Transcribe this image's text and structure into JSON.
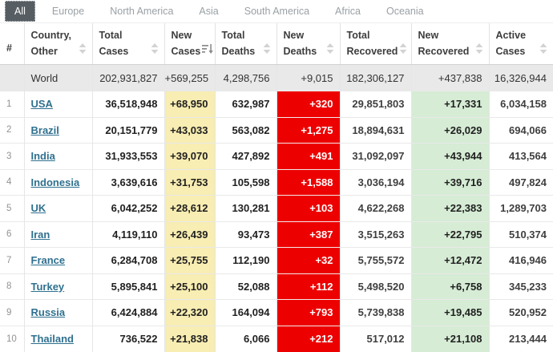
{
  "tabs": [
    {
      "label": "All",
      "active": true
    },
    {
      "label": "Europe",
      "active": false
    },
    {
      "label": "North America",
      "active": false
    },
    {
      "label": "Asia",
      "active": false
    },
    {
      "label": "South America",
      "active": false
    },
    {
      "label": "Africa",
      "active": false
    },
    {
      "label": "Oceania",
      "active": false
    }
  ],
  "table": {
    "columns": [
      {
        "key": "rank",
        "label_lines": [
          "",
          "#"
        ],
        "sortable": false
      },
      {
        "key": "country",
        "label_lines": [
          "Country,",
          "Other"
        ],
        "sortable": true,
        "sort_icon": "sort-toggle"
      },
      {
        "key": "total_cases",
        "label_lines": [
          "Total",
          "Cases"
        ],
        "sortable": true,
        "sort_icon": "sort-toggle"
      },
      {
        "key": "new_cases",
        "label_lines": [
          "New",
          "Cases"
        ],
        "sortable": true,
        "sort_icon": "sort-desc-active",
        "sorted": "desc"
      },
      {
        "key": "total_deaths",
        "label_lines": [
          "Total",
          "Deaths"
        ],
        "sortable": true,
        "sort_icon": "sort-toggle"
      },
      {
        "key": "new_deaths",
        "label_lines": [
          "New",
          "Deaths"
        ],
        "sortable": true,
        "sort_icon": "sort-toggle"
      },
      {
        "key": "total_recovered",
        "label_lines": [
          "Total",
          "Recovered"
        ],
        "sortable": true,
        "sort_icon": "sort-toggle"
      },
      {
        "key": "new_recovered",
        "label_lines": [
          "New",
          "Recovered"
        ],
        "sortable": true,
        "sort_icon": "sort-toggle"
      },
      {
        "key": "active_cases",
        "label_lines": [
          "Active",
          "Cases"
        ],
        "sortable": true,
        "sort_icon": "sort-toggle"
      }
    ],
    "world_row": {
      "rank": "",
      "country": "World",
      "total_cases": "202,931,827",
      "new_cases": "+569,255",
      "total_deaths": "4,298,756",
      "new_deaths": "+9,015",
      "total_recovered": "182,306,127",
      "new_recovered": "+437,838",
      "active_cases": "16,326,944"
    },
    "rows": [
      {
        "rank": "1",
        "country": "USA",
        "total_cases": "36,518,948",
        "new_cases": "+68,950",
        "total_deaths": "632,987",
        "new_deaths": "+320",
        "total_recovered": "29,851,803",
        "new_recovered": "+17,331",
        "active_cases": "6,034,158"
      },
      {
        "rank": "2",
        "country": "Brazil",
        "total_cases": "20,151,779",
        "new_cases": "+43,033",
        "total_deaths": "563,082",
        "new_deaths": "+1,275",
        "total_recovered": "18,894,631",
        "new_recovered": "+26,029",
        "active_cases": "694,066"
      },
      {
        "rank": "3",
        "country": "India",
        "total_cases": "31,933,553",
        "new_cases": "+39,070",
        "total_deaths": "427,892",
        "new_deaths": "+491",
        "total_recovered": "31,092,097",
        "new_recovered": "+43,944",
        "active_cases": "413,564"
      },
      {
        "rank": "4",
        "country": "Indonesia",
        "total_cases": "3,639,616",
        "new_cases": "+31,753",
        "total_deaths": "105,598",
        "new_deaths": "+1,588",
        "total_recovered": "3,036,194",
        "new_recovered": "+39,716",
        "active_cases": "497,824"
      },
      {
        "rank": "5",
        "country": "UK",
        "total_cases": "6,042,252",
        "new_cases": "+28,612",
        "total_deaths": "130,281",
        "new_deaths": "+103",
        "total_recovered": "4,622,268",
        "new_recovered": "+22,383",
        "active_cases": "1,289,703"
      },
      {
        "rank": "6",
        "country": "Iran",
        "total_cases": "4,119,110",
        "new_cases": "+26,439",
        "total_deaths": "93,473",
        "new_deaths": "+387",
        "total_recovered": "3,515,263",
        "new_recovered": "+22,795",
        "active_cases": "510,374"
      },
      {
        "rank": "7",
        "country": "France",
        "total_cases": "6,284,708",
        "new_cases": "+25,755",
        "total_deaths": "112,190",
        "new_deaths": "+32",
        "total_recovered": "5,755,572",
        "new_recovered": "+12,472",
        "active_cases": "416,946"
      },
      {
        "rank": "8",
        "country": "Turkey",
        "total_cases": "5,895,841",
        "new_cases": "+25,100",
        "total_deaths": "52,088",
        "new_deaths": "+112",
        "total_recovered": "5,498,520",
        "new_recovered": "+6,758",
        "active_cases": "345,233"
      },
      {
        "rank": "9",
        "country": "Russia",
        "total_cases": "6,424,884",
        "new_cases": "+22,320",
        "total_deaths": "164,094",
        "new_deaths": "+793",
        "total_recovered": "5,739,838",
        "new_recovered": "+19,485",
        "active_cases": "520,952"
      },
      {
        "rank": "10",
        "country": "Thailand",
        "total_cases": "736,522",
        "new_cases": "+21,838",
        "total_deaths": "6,066",
        "new_deaths": "+212",
        "total_recovered": "517,012",
        "new_recovered": "+21,108",
        "active_cases": "213,444"
      }
    ]
  },
  "colors": {
    "new_cases_bg": "#F8EDB2",
    "new_deaths_bg": "#EC0000",
    "new_deaths_text": "#FFFFFF",
    "new_recovered_bg": "#D6ECD5",
    "world_row_bg": "#E9E9E9",
    "active_tab_bg": "#565D63",
    "active_tab_text": "#FFFFFF",
    "inactive_tab_text": "#9AA0A5",
    "country_link": "#2F708F",
    "header_text": "#3D3D3D"
  }
}
